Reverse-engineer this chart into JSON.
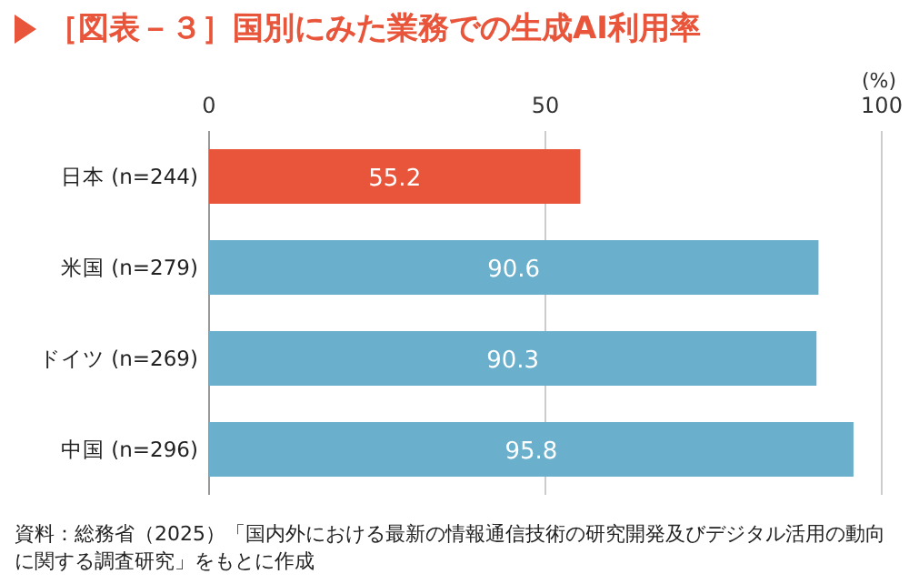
{
  "chart_data": {
    "type": "bar",
    "orientation": "horizontal",
    "title": "［図表－３］国別にみた業務での生成AI利用率",
    "xlabel": "(%)",
    "categories": [
      "日本 (n=244)",
      "米国 (n=279)",
      "ドイツ (n=269)",
      "中国 (n=296)"
    ],
    "values": [
      55.2,
      90.6,
      90.3,
      95.8
    ],
    "colors": [
      "#e8553a",
      "#6aafcc",
      "#6aafcc",
      "#6aafcc"
    ],
    "xlim": [
      0,
      100
    ],
    "xticks": [
      0,
      50,
      100
    ],
    "grid": "x",
    "data_labels": true,
    "annotations": [
      "資料：総務省（2025）「国内外における最新の情報通信技術の研究開発及びデジタル活用の動向に関する調査研究」をもとに作成"
    ]
  }
}
